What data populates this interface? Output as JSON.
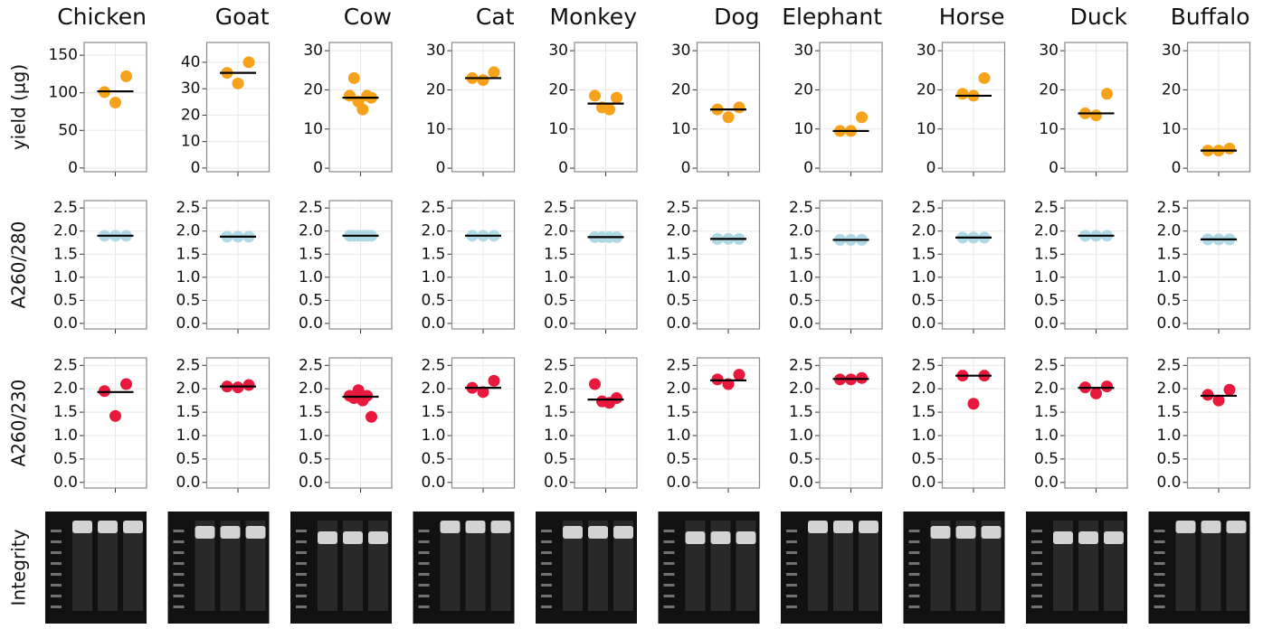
{
  "columns": [
    "Chicken",
    "Goat",
    "Cow",
    "Cat",
    "Monkey",
    "Dog",
    "Elephant",
    "Horse",
    "Duck",
    "Buffalo"
  ],
  "integrity_label": "Integrity",
  "chart_data": [
    {
      "type": "strip",
      "ylabel": "yield (µg)",
      "color": "#f7a21b",
      "grid": true,
      "panels": [
        {
          "values": [
            101,
            87,
            122
          ],
          "mean": 102,
          "ylim": [
            -5,
            167
          ],
          "yticks": [
            0,
            50,
            100,
            150
          ]
        },
        {
          "values": [
            36,
            32,
            40
          ],
          "mean": 36,
          "ylim": [
            -1.4,
            47.5
          ],
          "yticks": [
            0,
            10,
            20,
            30,
            40
          ]
        },
        {
          "values": [
            18.5,
            23,
            17,
            15,
            18.5,
            18
          ],
          "mean": 18,
          "ylim": [
            -0.9,
            32.1
          ],
          "yticks": [
            0,
            10,
            20,
            30
          ]
        },
        {
          "values": [
            23,
            22.5,
            24.5
          ],
          "mean": 23,
          "ylim": [
            -0.9,
            32.1
          ],
          "yticks": [
            0,
            10,
            20,
            30
          ]
        },
        {
          "values": [
            18.5,
            15.5,
            15,
            18
          ],
          "mean": 16.5,
          "ylim": [
            -0.9,
            32.1
          ],
          "yticks": [
            0,
            10,
            20,
            30
          ]
        },
        {
          "values": [
            15,
            13,
            15.5
          ],
          "mean": 15,
          "ylim": [
            -0.9,
            32.1
          ],
          "yticks": [
            0,
            10,
            20,
            30
          ]
        },
        {
          "values": [
            9.5,
            9.5,
            13
          ],
          "mean": 9.5,
          "ylim": [
            -0.9,
            32.1
          ],
          "yticks": [
            0,
            10,
            20,
            30
          ]
        },
        {
          "values": [
            19,
            18.5,
            23
          ],
          "mean": 18.5,
          "ylim": [
            -0.9,
            32.1
          ],
          "yticks": [
            0,
            10,
            20,
            30
          ]
        },
        {
          "values": [
            14,
            13.5,
            19
          ],
          "mean": 14,
          "ylim": [
            -0.9,
            32.1
          ],
          "yticks": [
            0,
            10,
            20,
            30
          ]
        },
        {
          "values": [
            4.5,
            4.5,
            5
          ],
          "mean": 4.5,
          "ylim": [
            -0.9,
            32.1
          ],
          "yticks": [
            0,
            10,
            20,
            30
          ]
        }
      ]
    },
    {
      "type": "strip",
      "ylabel": "A260/280",
      "color": "#add8e6",
      "grid": true,
      "ylim": [
        -0.12,
        2.66
      ],
      "yticks": [
        {
          "value": 0,
          "label": "0.0"
        },
        0.5,
        {
          "value": 1,
          "label": "1.0"
        },
        1.5,
        {
          "value": 2,
          "label": "2.0"
        },
        2.5
      ],
      "panels": [
        {
          "values": [
            1.9,
            1.9,
            1.9
          ],
          "mean": 1.9
        },
        {
          "values": [
            1.88,
            1.88,
            1.88
          ],
          "mean": 1.88
        },
        {
          "values": [
            1.9,
            1.9,
            1.9,
            1.9,
            1.9,
            1.9
          ],
          "mean": 1.9
        },
        {
          "values": [
            1.9,
            1.9,
            1.9
          ],
          "mean": 1.9
        },
        {
          "values": [
            1.87,
            1.87,
            1.87,
            1.87
          ],
          "mean": 1.87
        },
        {
          "values": [
            1.83,
            1.83,
            1.83
          ],
          "mean": 1.83
        },
        {
          "values": [
            1.81,
            1.81,
            1.81
          ],
          "mean": 1.81
        },
        {
          "values": [
            1.86,
            1.86,
            1.86
          ],
          "mean": 1.86
        },
        {
          "values": [
            1.9,
            1.9,
            1.9
          ],
          "mean": 1.9
        },
        {
          "values": [
            1.82,
            1.82,
            1.82
          ],
          "mean": 1.82
        }
      ]
    },
    {
      "type": "strip",
      "ylabel": "A260/230",
      "color": "#e8193c",
      "grid": true,
      "ylim": [
        -0.12,
        2.66
      ],
      "yticks": [
        {
          "value": 0,
          "label": "0.0"
        },
        0.5,
        {
          "value": 1,
          "label": "1.0"
        },
        1.5,
        {
          "value": 2,
          "label": "2.0"
        },
        2.5
      ],
      "panels": [
        {
          "values": [
            1.95,
            1.42,
            2.1
          ],
          "mean": 1.93
        },
        {
          "values": [
            2.05,
            2.03,
            2.08
          ],
          "mean": 2.05
        },
        {
          "values": [
            1.85,
            1.8,
            1.97,
            1.75,
            1.85,
            1.4
          ],
          "mean": 1.83
        },
        {
          "values": [
            2.02,
            1.93,
            2.17
          ],
          "mean": 2.02
        },
        {
          "values": [
            2.1,
            1.73,
            1.7,
            1.8
          ],
          "mean": 1.77
        },
        {
          "values": [
            2.2,
            2.1,
            2.3
          ],
          "mean": 2.18
        },
        {
          "values": [
            2.2,
            2.2,
            2.23
          ],
          "mean": 2.21
        },
        {
          "values": [
            2.28,
            1.68,
            2.28
          ],
          "mean": 2.28
        },
        {
          "values": [
            2.03,
            1.9,
            2.05
          ],
          "mean": 2.02
        },
        {
          "values": [
            1.87,
            1.75,
            1.98
          ],
          "mean": 1.85
        }
      ]
    }
  ]
}
